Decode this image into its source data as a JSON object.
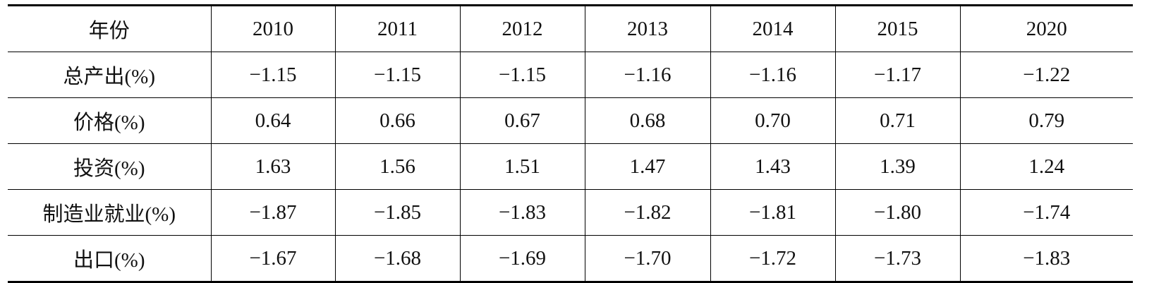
{
  "table": {
    "header": [
      "年份",
      "2010",
      "2011",
      "2012",
      "2013",
      "2014",
      "2015",
      "2020"
    ],
    "rows": [
      [
        "总产出(%)",
        "−1.15",
        "−1.15",
        "−1.15",
        "−1.16",
        "−1.16",
        "−1.17",
        "−1.22"
      ],
      [
        "价格(%)",
        "0.64",
        "0.66",
        "0.67",
        "0.68",
        "0.70",
        "0.71",
        "0.79"
      ],
      [
        "投资(%)",
        "1.63",
        "1.56",
        "1.51",
        "1.47",
        "1.43",
        "1.39",
        "1.24"
      ],
      [
        "制造业就业(%)",
        "−1.87",
        "−1.85",
        "−1.83",
        "−1.82",
        "−1.81",
        "−1.80",
        "−1.74"
      ],
      [
        "出口(%)",
        "−1.67",
        "−1.68",
        "−1.69",
        "−1.70",
        "−1.72",
        "−1.73",
        "−1.83"
      ]
    ]
  }
}
